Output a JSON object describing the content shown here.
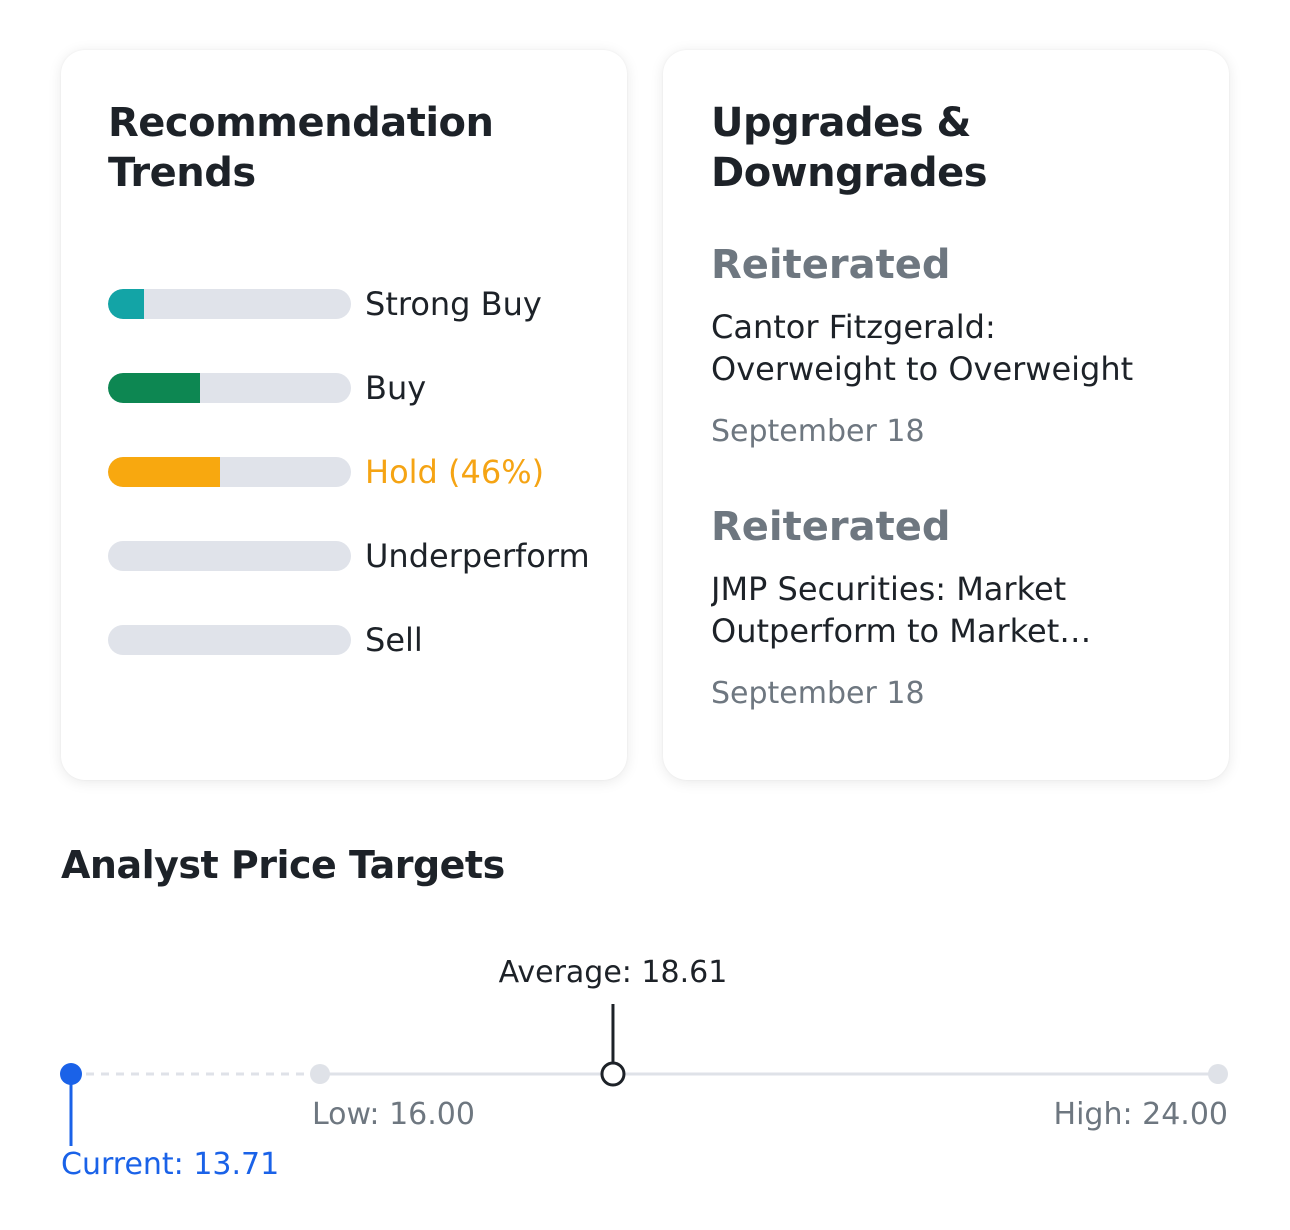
{
  "recommendation": {
    "title": "Recommendation Trends",
    "items": [
      {
        "label": "Strong Buy",
        "fill": 0.15,
        "color": "#13a4a6",
        "active": false
      },
      {
        "label": "Buy",
        "fill": 0.38,
        "color": "#0d8752",
        "active": false
      },
      {
        "label": "Hold (46%)",
        "fill": 0.46,
        "color": "#f8a80f",
        "active": true
      },
      {
        "label": "Underperform",
        "fill": 0,
        "color": "#e0e3ea",
        "active": false
      },
      {
        "label": "Sell",
        "fill": 0,
        "color": "#e0e3ea",
        "active": false
      }
    ]
  },
  "upgrades": {
    "title": "Upgrades & Downgrades",
    "items": [
      {
        "action": "Reiterated",
        "firm": "Cantor Fitzgerald: Overweight to Overweight",
        "date": "September 18"
      },
      {
        "action": "Reiterated",
        "firm": "JMP Securities: Market Outperform to Market Outperform",
        "date": "September 18"
      }
    ]
  },
  "price_targets": {
    "title": "Analyst Price Targets",
    "average_label": "Average: 18.61",
    "low_label": "Low: 16.00",
    "high_label": "High: 24.00",
    "current_label": "Current: 13.71",
    "current": 13.71,
    "low": 16.0,
    "average": 18.61,
    "high": 24.0,
    "colors": {
      "current": "#1a62e8",
      "track": "#dfe2e8",
      "marker": "#1d2228",
      "muted": "#6e7780"
    }
  }
}
